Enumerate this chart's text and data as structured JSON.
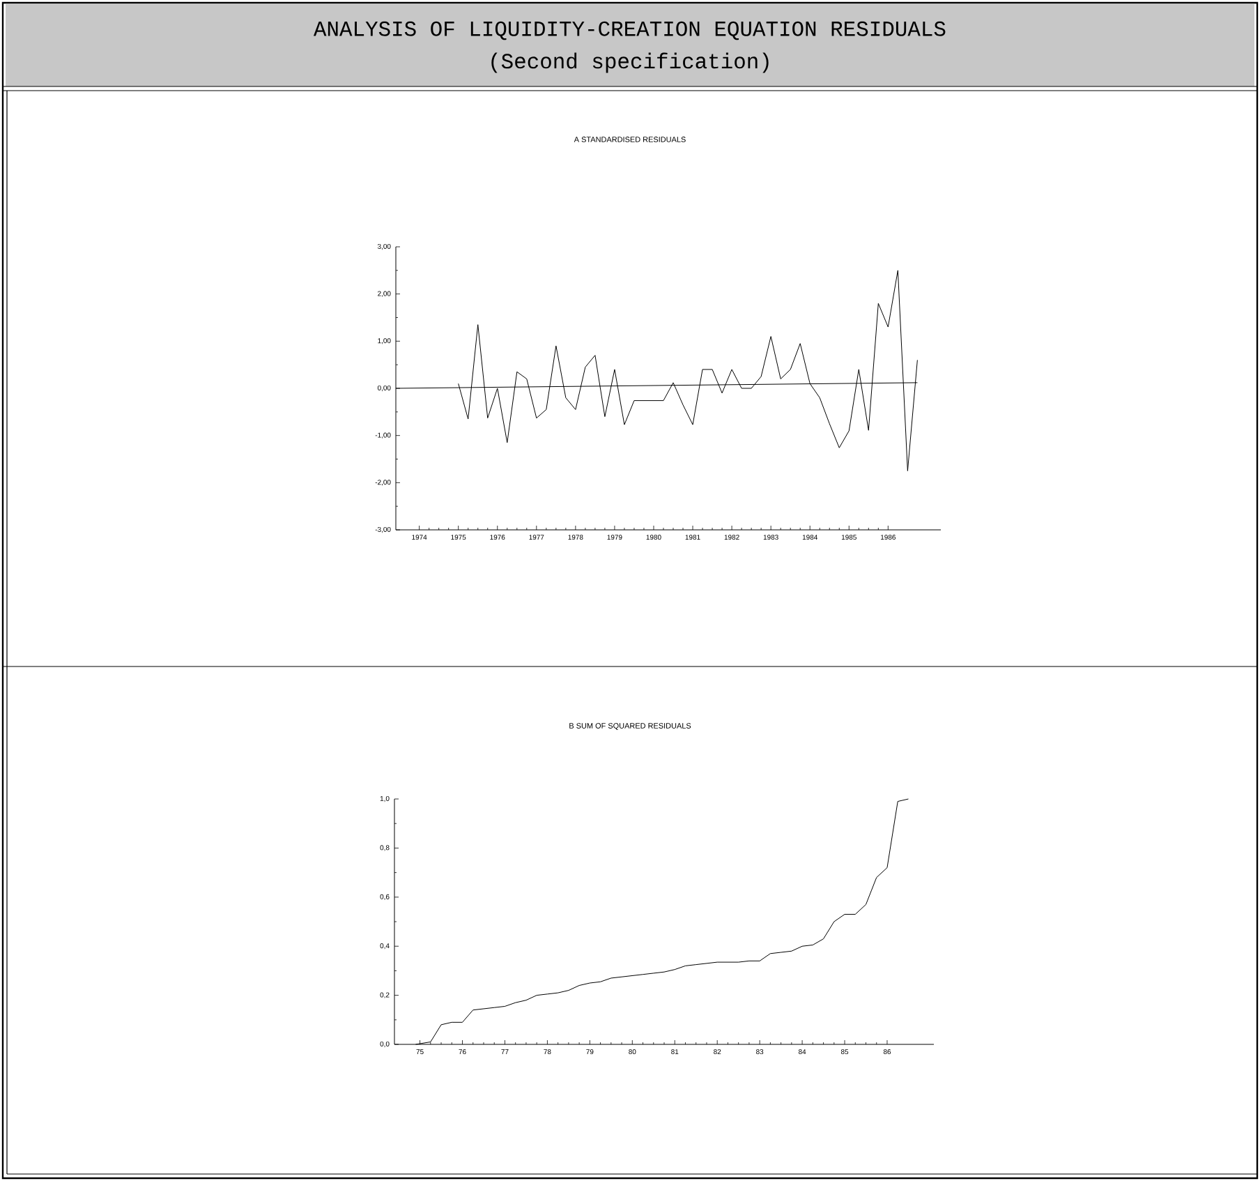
{
  "chart_data": [
    {
      "type": "other",
      "title": "ANALYSIS OF LIQUIDITY-CREATION EQUATION RESIDUALS",
      "subtitle": "(Second specification)"
    },
    {
      "type": "line",
      "title": "A  STANDARDISED RESIDUALS",
      "xlim": [
        1973.4,
        1987.35
      ],
      "ylim": [
        -3,
        3
      ],
      "xticks": [
        1974,
        1975,
        1976,
        1977,
        1978,
        1979,
        1980,
        1981,
        1982,
        1983,
        1984,
        1985,
        1986
      ],
      "yticks": [
        {
          "value": 3,
          "label": "3,00"
        },
        {
          "value": 2,
          "label": "2,00"
        },
        {
          "value": 1,
          "label": "1,00"
        },
        {
          "value": 0,
          "label": "0,00"
        },
        {
          "value": -1,
          "label": "-1,00"
        },
        {
          "value": -2,
          "label": "-2,00"
        },
        {
          "value": -3,
          "label": "-3,00"
        }
      ],
      "series": [
        {
          "color": "#000000",
          "x": [
            1975.0,
            1975.25,
            1975.5,
            1975.75,
            1976.0,
            1976.25,
            1976.5,
            1976.75,
            1977.0,
            1977.25,
            1977.5,
            1977.75,
            1978.0,
            1978.25,
            1978.5,
            1978.75,
            1979.0,
            1979.25,
            1979.5,
            1979.75,
            1980.0,
            1980.25,
            1980.5,
            1980.75,
            1981.0,
            1981.25,
            1981.5,
            1981.75,
            1982.0,
            1982.25,
            1982.5,
            1982.75,
            1983.0,
            1983.25,
            1983.5,
            1983.75,
            1984.0,
            1984.25,
            1984.5,
            1984.75,
            1985.0,
            1985.25,
            1985.5,
            1985.75,
            1986.0,
            1986.25,
            1986.5,
            1986.75
          ],
          "values": [
            0.1,
            -0.65,
            1.35,
            -0.63,
            0.0,
            -1.15,
            0.35,
            0.2,
            -0.63,
            -0.45,
            0.9,
            -0.2,
            -0.45,
            0.45,
            0.7,
            -0.6,
            0.4,
            -0.77,
            -0.26,
            -0.26,
            -0.26,
            -0.26,
            0.12,
            -0.35,
            -0.77,
            0.4,
            0.4,
            -0.1,
            0.4,
            0.0,
            0.0,
            0.25,
            1.1,
            0.2,
            0.4,
            0.95,
            0.1,
            -0.2,
            -0.75,
            -1.26,
            -0.9,
            0.4,
            -0.89,
            1.8,
            1.3,
            2.5,
            -1.75,
            0.6
          ]
        },
        {
          "color": "#000000",
          "x": [
            1973.4,
            1986.75
          ],
          "values": [
            0.0,
            0.12
          ]
        }
      ]
    },
    {
      "type": "line",
      "title": "B  SUM OF SQUARED RESIDUALS",
      "xlim": [
        74.4,
        87.1
      ],
      "ylim": [
        0,
        1.0
      ],
      "xticks": [
        75,
        76,
        77,
        78,
        79,
        80,
        81,
        82,
        83,
        84,
        85,
        86
      ],
      "yticks": [
        {
          "value": 0,
          "label": "0,0"
        },
        {
          "value": 0.2,
          "label": "0,2"
        },
        {
          "value": 0.4,
          "label": "0,4"
        },
        {
          "value": 0.6,
          "label": "0,6"
        },
        {
          "value": 0.8,
          "label": "0,8"
        },
        {
          "value": 1.0,
          "label": "1,0"
        }
      ],
      "series": [
        {
          "color": "#000000",
          "x": [
            74.9,
            75.25,
            75.5,
            75.75,
            76.0,
            76.25,
            76.5,
            76.75,
            77.0,
            77.25,
            77.5,
            77.75,
            78.0,
            78.25,
            78.5,
            78.75,
            79.0,
            79.25,
            79.5,
            79.75,
            80.0,
            80.25,
            80.5,
            80.75,
            81.0,
            81.25,
            81.5,
            81.75,
            82.0,
            82.25,
            82.5,
            82.75,
            83.0,
            83.25,
            83.5,
            83.75,
            84.0,
            84.25,
            84.5,
            84.75,
            85.0,
            85.25,
            85.5,
            85.75,
            86.0,
            86.25,
            86.5
          ],
          "values": [
            0.0,
            0.01,
            0.08,
            0.09,
            0.09,
            0.14,
            0.145,
            0.15,
            0.155,
            0.17,
            0.18,
            0.2,
            0.205,
            0.21,
            0.22,
            0.24,
            0.25,
            0.255,
            0.27,
            0.275,
            0.28,
            0.285,
            0.29,
            0.295,
            0.305,
            0.32,
            0.325,
            0.33,
            0.335,
            0.335,
            0.335,
            0.34,
            0.34,
            0.37,
            0.375,
            0.38,
            0.4,
            0.405,
            0.43,
            0.5,
            0.53,
            0.53,
            0.57,
            0.68,
            0.72,
            0.99,
            1.0
          ]
        }
      ]
    }
  ]
}
